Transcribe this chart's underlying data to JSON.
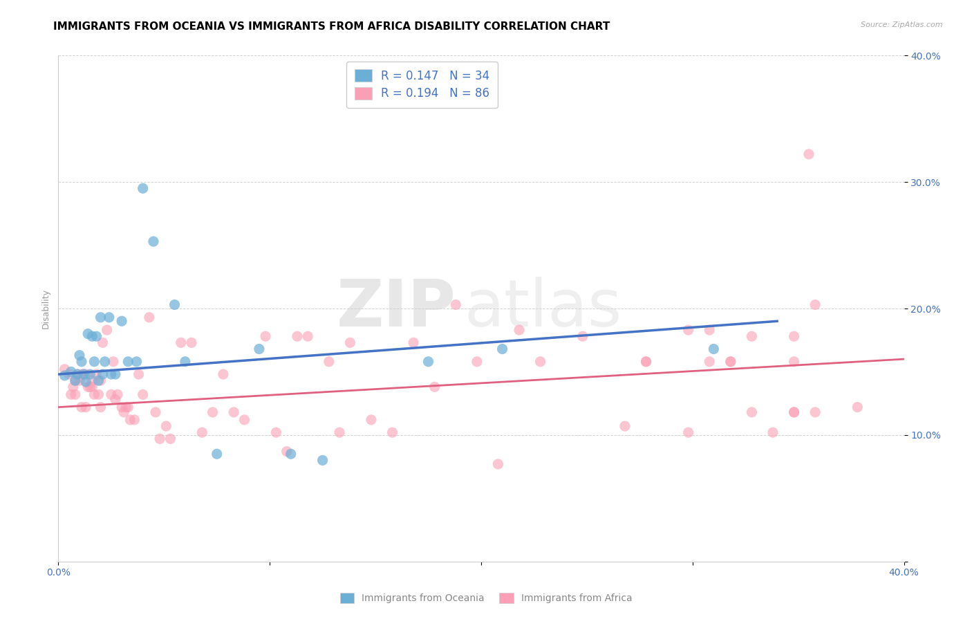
{
  "title": "IMMIGRANTS FROM OCEANIA VS IMMIGRANTS FROM AFRICA DISABILITY CORRELATION CHART",
  "source": "Source: ZipAtlas.com",
  "ylabel": "Disability",
  "xlim": [
    0.0,
    0.4
  ],
  "ylim": [
    0.0,
    0.4
  ],
  "xticks": [
    0.0,
    0.1,
    0.2,
    0.3,
    0.4
  ],
  "yticks": [
    0.0,
    0.1,
    0.2,
    0.3,
    0.4
  ],
  "xticklabels": [
    "0.0%",
    "",
    "",
    "",
    ""
  ],
  "yticklabels": [
    "",
    "10.0%",
    "20.0%",
    "30.0%",
    "40.0%"
  ],
  "oceania_color": "#6baed6",
  "africa_color": "#fa9fb5",
  "trend_oceania_color": "#4472c4",
  "trend_africa_color": "#e06080",
  "R_oceania": 0.147,
  "N_oceania": 34,
  "R_africa": 0.194,
  "N_africa": 86,
  "legend_label_oceania": "Immigrants from Oceania",
  "legend_label_africa": "Immigrants from Africa",
  "watermark_zip": "ZIP",
  "watermark_atlas": "atlas",
  "title_fontsize": 11,
  "axis_label_fontsize": 9,
  "tick_fontsize": 10,
  "oceania_x": [
    0.003,
    0.006,
    0.008,
    0.009,
    0.01,
    0.011,
    0.012,
    0.013,
    0.014,
    0.015,
    0.016,
    0.017,
    0.018,
    0.019,
    0.02,
    0.021,
    0.022,
    0.024,
    0.025,
    0.027,
    0.03,
    0.033,
    0.037,
    0.04,
    0.045,
    0.055,
    0.06,
    0.075,
    0.095,
    0.11,
    0.125,
    0.175,
    0.21,
    0.31
  ],
  "oceania_y": [
    0.147,
    0.15,
    0.143,
    0.148,
    0.163,
    0.158,
    0.148,
    0.142,
    0.18,
    0.148,
    0.178,
    0.158,
    0.178,
    0.143,
    0.193,
    0.148,
    0.158,
    0.193,
    0.148,
    0.148,
    0.19,
    0.158,
    0.158,
    0.295,
    0.253,
    0.203,
    0.158,
    0.085,
    0.168,
    0.085,
    0.08,
    0.158,
    0.168,
    0.168
  ],
  "africa_x": [
    0.003,
    0.005,
    0.006,
    0.007,
    0.008,
    0.008,
    0.009,
    0.01,
    0.011,
    0.011,
    0.012,
    0.013,
    0.013,
    0.014,
    0.015,
    0.016,
    0.016,
    0.017,
    0.018,
    0.019,
    0.02,
    0.02,
    0.021,
    0.023,
    0.025,
    0.026,
    0.027,
    0.028,
    0.03,
    0.031,
    0.032,
    0.033,
    0.034,
    0.036,
    0.038,
    0.04,
    0.043,
    0.046,
    0.048,
    0.051,
    0.053,
    0.058,
    0.063,
    0.068,
    0.073,
    0.078,
    0.083,
    0.088,
    0.098,
    0.103,
    0.108,
    0.113,
    0.118,
    0.128,
    0.133,
    0.138,
    0.148,
    0.158,
    0.168,
    0.178,
    0.188,
    0.198,
    0.208,
    0.218,
    0.228,
    0.248,
    0.268,
    0.278,
    0.298,
    0.308,
    0.318,
    0.328,
    0.338,
    0.348,
    0.355,
    0.298,
    0.308,
    0.348,
    0.278,
    0.348,
    0.358,
    0.378,
    0.318,
    0.328,
    0.348,
    0.358
  ],
  "africa_y": [
    0.152,
    0.148,
    0.132,
    0.138,
    0.143,
    0.132,
    0.148,
    0.143,
    0.122,
    0.148,
    0.148,
    0.122,
    0.148,
    0.138,
    0.138,
    0.143,
    0.138,
    0.132,
    0.148,
    0.132,
    0.143,
    0.122,
    0.173,
    0.183,
    0.132,
    0.158,
    0.128,
    0.132,
    0.122,
    0.118,
    0.122,
    0.122,
    0.112,
    0.112,
    0.148,
    0.132,
    0.193,
    0.118,
    0.097,
    0.107,
    0.097,
    0.173,
    0.173,
    0.102,
    0.118,
    0.148,
    0.118,
    0.112,
    0.178,
    0.102,
    0.087,
    0.178,
    0.178,
    0.158,
    0.102,
    0.173,
    0.112,
    0.102,
    0.173,
    0.138,
    0.203,
    0.158,
    0.077,
    0.183,
    0.158,
    0.178,
    0.107,
    0.158,
    0.102,
    0.158,
    0.158,
    0.178,
    0.102,
    0.118,
    0.322,
    0.183,
    0.183,
    0.118,
    0.158,
    0.178,
    0.118,
    0.122,
    0.158,
    0.118,
    0.158,
    0.203
  ],
  "trend_oceania_x0": 0.0,
  "trend_oceania_y0": 0.148,
  "trend_oceania_x1": 0.34,
  "trend_oceania_y1": 0.19,
  "trend_africa_x0": 0.0,
  "trend_africa_y0": 0.122,
  "trend_africa_x1": 0.4,
  "trend_africa_y1": 0.16
}
